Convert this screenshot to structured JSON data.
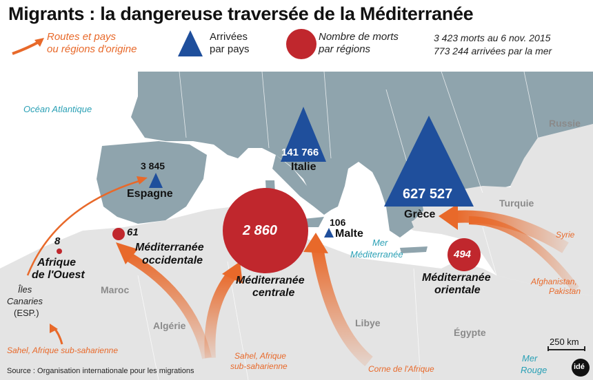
{
  "title": "Migrants : la dangereuse traversée de la Méditerranée",
  "legend": {
    "routes_line1": "Routes et pays",
    "routes_line2": "ou régions d'origine",
    "arrivals_line1": "Arrivées",
    "arrivals_line2": "par pays",
    "deaths_line1": "Nombre de morts",
    "deaths_line2": "par régions",
    "total_deaths": "3 423 morts au 6 nov. 2015",
    "total_arrivals": "773 244 arrivées par la mer"
  },
  "arrivals": [
    {
      "country": "Italie",
      "value": "141 766"
    },
    {
      "country": "Grèce",
      "value": "627 527"
    },
    {
      "country": "Espagne",
      "value": "3 845"
    },
    {
      "country": "Malte",
      "value": "106"
    }
  ],
  "deaths": [
    {
      "region_line1": "Méditerranée",
      "region_line2": "centrale",
      "value": "2 860"
    },
    {
      "region_line1": "Méditerranée",
      "region_line2": "orientale",
      "value": "494"
    },
    {
      "region_line1": "Méditerranée",
      "region_line2": "occidentale",
      "value": "61"
    },
    {
      "region_line1": "Afrique",
      "region_line2": "de l'Ouest",
      "value": "8"
    }
  ],
  "origins": {
    "syrie": "Syrie",
    "afghanistan_line1": "Afghanistan,",
    "afghanistan_line2": "Pakistan",
    "corne": "Corne de l'Afrique",
    "sahel_center_line1": "Sahel, Afrique",
    "sahel_center_line2": "sub-saharienne",
    "sahel_west": "Sahel, Afrique sub-saharienne"
  },
  "places": {
    "ocean": "Océan Atlantique",
    "mer_med_line1": "Mer",
    "mer_med_line2": "Méditerranée",
    "mer_rouge_line1": "Mer",
    "mer_rouge_line2": "Rouge",
    "russie": "Russie",
    "turquie": "Turquie",
    "maroc": "Maroc",
    "algerie": "Algérie",
    "libye": "Libye",
    "egypte": "Égypte",
    "canaries_line1": "Îles",
    "canaries_line2": "Canaries",
    "canaries_line3": "(ESP.)"
  },
  "scale": "250 km",
  "source": "Source : Organisation internationale pour les migrations",
  "logo": "idé",
  "colors": {
    "sea": "#ffffff",
    "europe": "#8fa4ad",
    "africa_asia": "#e4e4e4",
    "arrivals_triangle": "#1f4f9c",
    "deaths_circle": "#c0272d",
    "route_arrow": "#e8692a",
    "sea_labels": "#2aa0b5"
  }
}
